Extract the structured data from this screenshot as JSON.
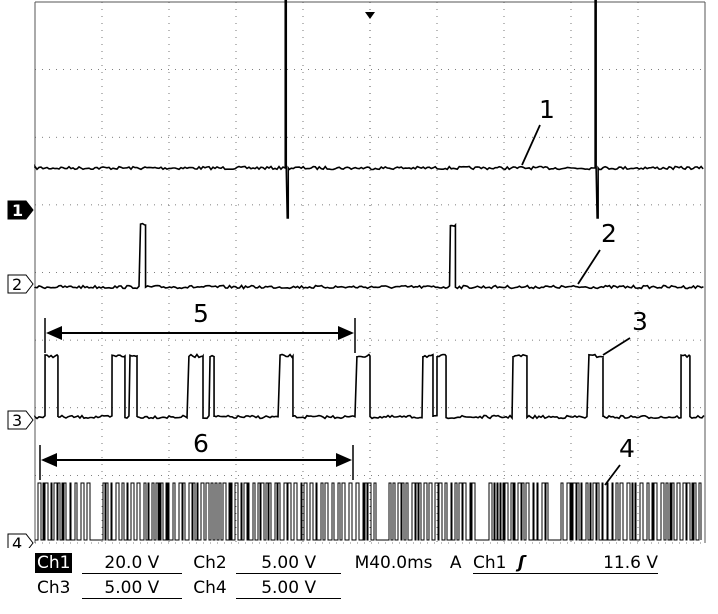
{
  "chart_data": {
    "type": "line",
    "title": "",
    "xlabel": "",
    "ylabel": "",
    "x_units": "ms",
    "xlim": [
      0,
      400
    ],
    "grid": true,
    "grid_divisions": {
      "horizontal": 10,
      "vertical": 8
    },
    "series": [
      {
        "marker": "1",
        "kind": "spikes",
        "spike_times": [
          150,
          335
        ]
      },
      {
        "marker": "2",
        "kind": "pulses",
        "pulses": [
          [
            63,
            66
          ],
          [
            248,
            251
          ]
        ]
      },
      {
        "marker": "3",
        "kind": "pulses",
        "pulses": [
          [
            6,
            13.7
          ],
          [
            46,
            53.7
          ],
          [
            56.7,
            60.9
          ],
          [
            91.9,
            100.3
          ],
          [
            104.5,
            106.9
          ],
          [
            146.3,
            154
          ],
          [
            192.2,
            200
          ],
          [
            231.6,
            237.6
          ],
          [
            240,
            245.4
          ],
          [
            285.4,
            293.7
          ],
          [
            330.7,
            339.1
          ],
          [
            385.7,
            391
          ]
        ]
      },
      {
        "marker": "4",
        "kind": "dense pulse train"
      }
    ],
    "annotations": [
      "1",
      "2",
      "3",
      "4",
      "5",
      "6"
    ]
  },
  "readout": {
    "ch1_label": "Ch1",
    "ch1_scale": "20.0 V",
    "ch2_label": "Ch2",
    "ch2_scale": "5.00 V",
    "ch3_label": "Ch3",
    "ch3_scale": "5.00 V",
    "ch4_label": "Ch4",
    "ch4_scale": "5.00 V",
    "timebase": "M40.0ms",
    "trigger_label": "A",
    "trigger_source": "Ch1",
    "trigger_slope_icon": "rising-edge-icon",
    "trigger_level": "11.6 V"
  }
}
